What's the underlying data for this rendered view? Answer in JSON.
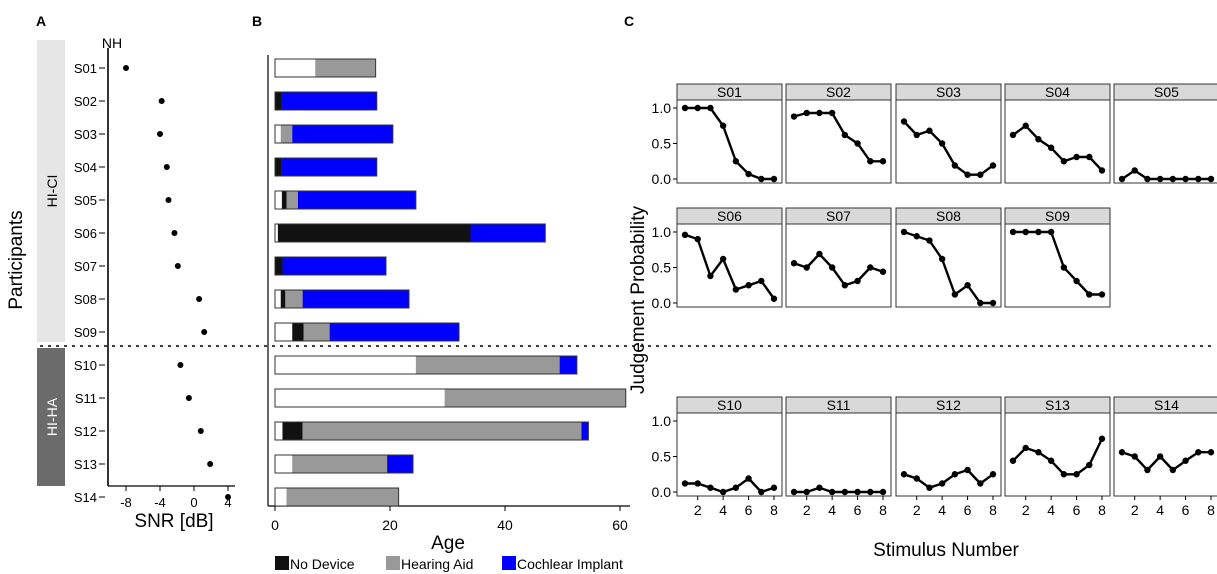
{
  "panels": {
    "a": "A",
    "b": "B",
    "c": "C"
  },
  "colors": {
    "no_device": "#111111",
    "hearing_aid": "#999999",
    "cochlear_implant": "#0000ff",
    "hici_band": "#e6e6e6",
    "hiha_band": "#6b6b6b"
  },
  "chart_data": [
    {
      "type": "scatter",
      "panel": "A",
      "xlabel": "SNR [dB]",
      "ylabel": "Participants",
      "nh_label": "NH",
      "xticks": [
        -8,
        -4,
        0,
        4
      ],
      "xlim": [
        -10,
        5
      ],
      "groups": [
        {
          "name": "HI-CI",
          "participants": [
            "S01",
            "S02",
            "S03",
            "S04",
            "S05",
            "S06",
            "S07",
            "S08",
            "S09"
          ]
        },
        {
          "name": "HI-HA",
          "participants": [
            "S10",
            "S11",
            "S12",
            "S13",
            "S14"
          ]
        }
      ],
      "participants": [
        "S01",
        "S02",
        "S03",
        "S04",
        "S05",
        "S06",
        "S07",
        "S08",
        "S09",
        "S10",
        "S11",
        "S12",
        "S13",
        "S14"
      ],
      "values": [
        -8.0,
        -3.8,
        -4.0,
        -3.2,
        -3.0,
        -2.3,
        -1.9,
        0.6,
        1.2,
        -1.6,
        -0.6,
        0.8,
        1.9,
        4.0
      ]
    },
    {
      "type": "bar",
      "panel": "B",
      "orientation": "horizontal",
      "stacked": true,
      "xlabel": "Age",
      "xticks": [
        0,
        20,
        40,
        60
      ],
      "xlim": [
        0,
        62
      ],
      "categories": [
        "S01",
        "S02",
        "S03",
        "S04",
        "S05",
        "S06",
        "S07",
        "S08",
        "S09",
        "S10",
        "S11",
        "S12",
        "S13",
        "S14"
      ],
      "series": [
        {
          "key": "normal",
          "values": [
            7,
            0,
            1,
            0,
            1.2,
            0.5,
            0,
            1,
            3,
            24.5,
            29.5,
            1.3,
            3,
            2
          ]
        },
        {
          "key": "no_device",
          "name": "No Device",
          "values": [
            0,
            1.2,
            0,
            1.2,
            0.8,
            33.5,
            1.3,
            0.8,
            2,
            0,
            0,
            3.5,
            0,
            0
          ]
        },
        {
          "key": "hearing_aid",
          "name": "Hearing Aid",
          "values": [
            10.5,
            0,
            2,
            0,
            2,
            0,
            0,
            3,
            4.5,
            25,
            31.5,
            48.5,
            16.5,
            19.5
          ]
        },
        {
          "key": "cochlear_implant",
          "name": "Cochlear Implant",
          "values": [
            0,
            16.5,
            17.5,
            16.5,
            20.5,
            13,
            18,
            18.5,
            22.5,
            3,
            0,
            1.2,
            4.5,
            0
          ]
        }
      ],
      "legend_position": "bottom",
      "legend": [
        "No Device",
        "Hearing Aid",
        "Cochlear Implant"
      ]
    },
    {
      "type": "line",
      "panel": "C",
      "xlabel": "Stimulus Number",
      "ylabel": "Judgement Probability",
      "xticks": [
        2,
        4,
        6,
        8
      ],
      "yticks": [
        0.0,
        0.5,
        1.0
      ],
      "ytick_labels": [
        "0.0",
        "0.5",
        "1.0"
      ],
      "ylim": [
        0,
        1
      ],
      "x": [
        1,
        2,
        3,
        4,
        5,
        6,
        7,
        8
      ],
      "facets": [
        {
          "name": "S01",
          "values": [
            1.0,
            1.0,
            1.0,
            0.75,
            0.25,
            0.07,
            0.0,
            0.0
          ]
        },
        {
          "name": "S02",
          "values": [
            0.88,
            0.93,
            0.93,
            0.93,
            0.62,
            0.5,
            0.25,
            0.25
          ]
        },
        {
          "name": "S03",
          "values": [
            0.81,
            0.62,
            0.68,
            0.5,
            0.19,
            0.06,
            0.06,
            0.19
          ]
        },
        {
          "name": "S04",
          "values": [
            0.62,
            0.75,
            0.56,
            0.44,
            0.25,
            0.31,
            0.31,
            0.12
          ]
        },
        {
          "name": "S05",
          "values": [
            0.0,
            0.12,
            0.0,
            0.0,
            0.0,
            0.0,
            0.0,
            0.0
          ]
        },
        {
          "name": "S06",
          "values": [
            0.96,
            0.9,
            0.38,
            0.62,
            0.19,
            0.25,
            0.31,
            0.06
          ]
        },
        {
          "name": "S07",
          "values": [
            0.56,
            0.5,
            0.69,
            0.5,
            0.25,
            0.31,
            0.5,
            0.44
          ]
        },
        {
          "name": "S08",
          "values": [
            1.0,
            0.94,
            0.88,
            0.62,
            0.12,
            0.25,
            0.0,
            0.0
          ]
        },
        {
          "name": "S09",
          "values": [
            1.0,
            1.0,
            1.0,
            1.0,
            0.5,
            0.31,
            0.12,
            0.12
          ]
        },
        {
          "name": "S10",
          "values": [
            0.12,
            0.12,
            0.06,
            0.0,
            0.06,
            0.19,
            0.0,
            0.06
          ]
        },
        {
          "name": "S11",
          "values": [
            0.0,
            0.0,
            0.06,
            0.0,
            0.0,
            0.0,
            0.0,
            0.0
          ]
        },
        {
          "name": "S12",
          "values": [
            0.25,
            0.19,
            0.06,
            0.12,
            0.25,
            0.31,
            0.12,
            0.25
          ]
        },
        {
          "name": "S13",
          "values": [
            0.44,
            0.62,
            0.56,
            0.44,
            0.25,
            0.25,
            0.38,
            0.75
          ]
        },
        {
          "name": "S14",
          "values": [
            0.56,
            0.5,
            0.31,
            0.5,
            0.31,
            0.44,
            0.56,
            0.56
          ]
        }
      ]
    }
  ]
}
